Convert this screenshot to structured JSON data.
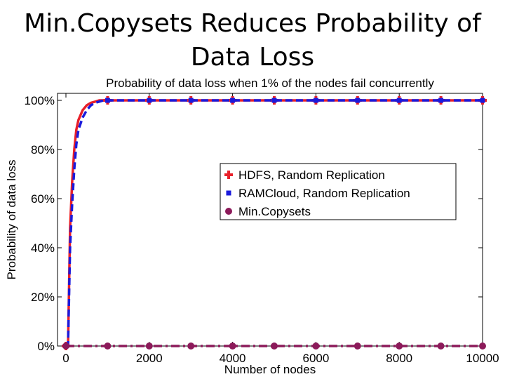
{
  "slide": {
    "title_line1": "Min.Copysets Reduces Probability of",
    "title_line2": "Data Loss"
  },
  "chart_data": {
    "type": "line",
    "title": "Probability of data loss when 1% of the nodes fail concurrently",
    "xlabel": "Number of nodes",
    "ylabel": "Probability of data loss",
    "xlim": [
      0,
      10000
    ],
    "ylim": [
      0,
      100
    ],
    "xticks": [
      0,
      2000,
      4000,
      6000,
      8000,
      10000
    ],
    "yticks": [
      0,
      20,
      40,
      60,
      80,
      100
    ],
    "ytick_labels": [
      "0%",
      "20%",
      "40%",
      "60%",
      "80%",
      "100%"
    ],
    "legend_position": "center-right",
    "grid": false,
    "series": [
      {
        "name": "HDFS, Random Replication",
        "color": "#e8202a",
        "line_style": "solid",
        "marker": "plus",
        "x": [
          0,
          50,
          100,
          150,
          200,
          250,
          300,
          400,
          500,
          600,
          700,
          800,
          900,
          1000,
          2000,
          3000,
          4000,
          5000,
          6000,
          7000,
          8000,
          9000,
          10000
        ],
        "y": [
          0,
          0,
          48,
          67,
          80,
          88,
          92,
          96,
          98,
          99,
          99.5,
          100,
          100,
          100,
          100,
          100,
          100,
          100,
          100,
          100,
          100,
          100,
          100
        ],
        "marker_x": [
          0,
          1000,
          2000,
          3000,
          4000,
          5000,
          6000,
          7000,
          8000,
          9000,
          10000
        ]
      },
      {
        "name": "RAMCloud, Random Replication",
        "color": "#1a1adc",
        "line_style": "dashed",
        "marker": "square",
        "x": [
          0,
          50,
          100,
          150,
          200,
          250,
          300,
          400,
          500,
          600,
          700,
          800,
          900,
          1000,
          2000,
          3000,
          4000,
          5000,
          6000,
          7000,
          8000,
          9000,
          10000
        ],
        "y": [
          0,
          0,
          40,
          58,
          72,
          82,
          88,
          93,
          96,
          98,
          99,
          99.5,
          100,
          100,
          100,
          100,
          100,
          100,
          100,
          100,
          100,
          100,
          100
        ],
        "marker_x": [
          0,
          1000,
          2000,
          3000,
          4000,
          5000,
          6000,
          7000,
          8000,
          9000,
          10000
        ]
      },
      {
        "name": "Min.Copysets",
        "color": "#8c1a5a",
        "line_style": "dashdot",
        "marker": "circle",
        "x": [
          0,
          1000,
          2000,
          3000,
          4000,
          5000,
          6000,
          7000,
          8000,
          9000,
          10000
        ],
        "y": [
          0,
          0,
          0,
          0,
          0,
          0,
          0,
          0,
          0,
          0,
          0
        ],
        "marker_x": [
          0,
          1000,
          2000,
          3000,
          4000,
          5000,
          6000,
          7000,
          8000,
          9000,
          10000
        ]
      }
    ]
  }
}
